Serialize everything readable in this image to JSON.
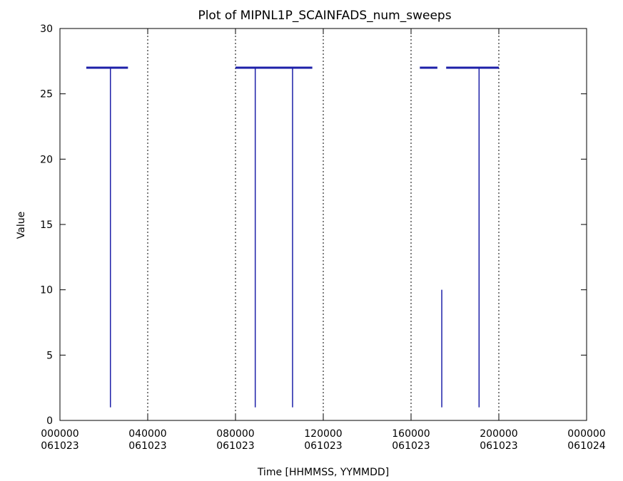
{
  "chart_data": {
    "type": "line",
    "title": "Plot of MIPNL1P_SCAINFADS_num_sweeps",
    "xlabel": "Time [HHMMSS, YYMMDD]",
    "ylabel": "Value",
    "x_unit": "hours",
    "xlim": [
      0,
      24
    ],
    "ylim": [
      0,
      30
    ],
    "x_ticks": [
      {
        "value": 0,
        "time": "000000",
        "date": "061023"
      },
      {
        "value": 4,
        "time": "040000",
        "date": "061023"
      },
      {
        "value": 8,
        "time": "080000",
        "date": "061023"
      },
      {
        "value": 12,
        "time": "120000",
        "date": "061023"
      },
      {
        "value": 16,
        "time": "160000",
        "date": "061023"
      },
      {
        "value": 20,
        "time": "200000",
        "date": "061023"
      },
      {
        "value": 24,
        "time": "000000",
        "date": "061024"
      }
    ],
    "y_ticks": [
      0,
      5,
      10,
      15,
      20,
      25,
      30
    ],
    "dividers": [
      4,
      8,
      12,
      16,
      20
    ],
    "grid": false,
    "series_color": "#1c1fa8",
    "plateaus": [
      {
        "x": [
          1.2,
          3.1
        ],
        "y": 27
      },
      {
        "x": [
          8.0,
          11.5
        ],
        "y": 27
      },
      {
        "x": [
          16.4,
          17.2
        ],
        "y": 27
      },
      {
        "x": [
          17.6,
          20.0
        ],
        "y": 27
      }
    ],
    "drops": [
      {
        "x": 2.3,
        "y": [
          1,
          27
        ]
      },
      {
        "x": 8.9,
        "y": [
          1,
          27
        ]
      },
      {
        "x": 10.6,
        "y": [
          1,
          27
        ]
      },
      {
        "x": 17.4,
        "y": [
          1,
          10
        ]
      },
      {
        "x": 19.1,
        "y": [
          1,
          27
        ]
      }
    ]
  }
}
